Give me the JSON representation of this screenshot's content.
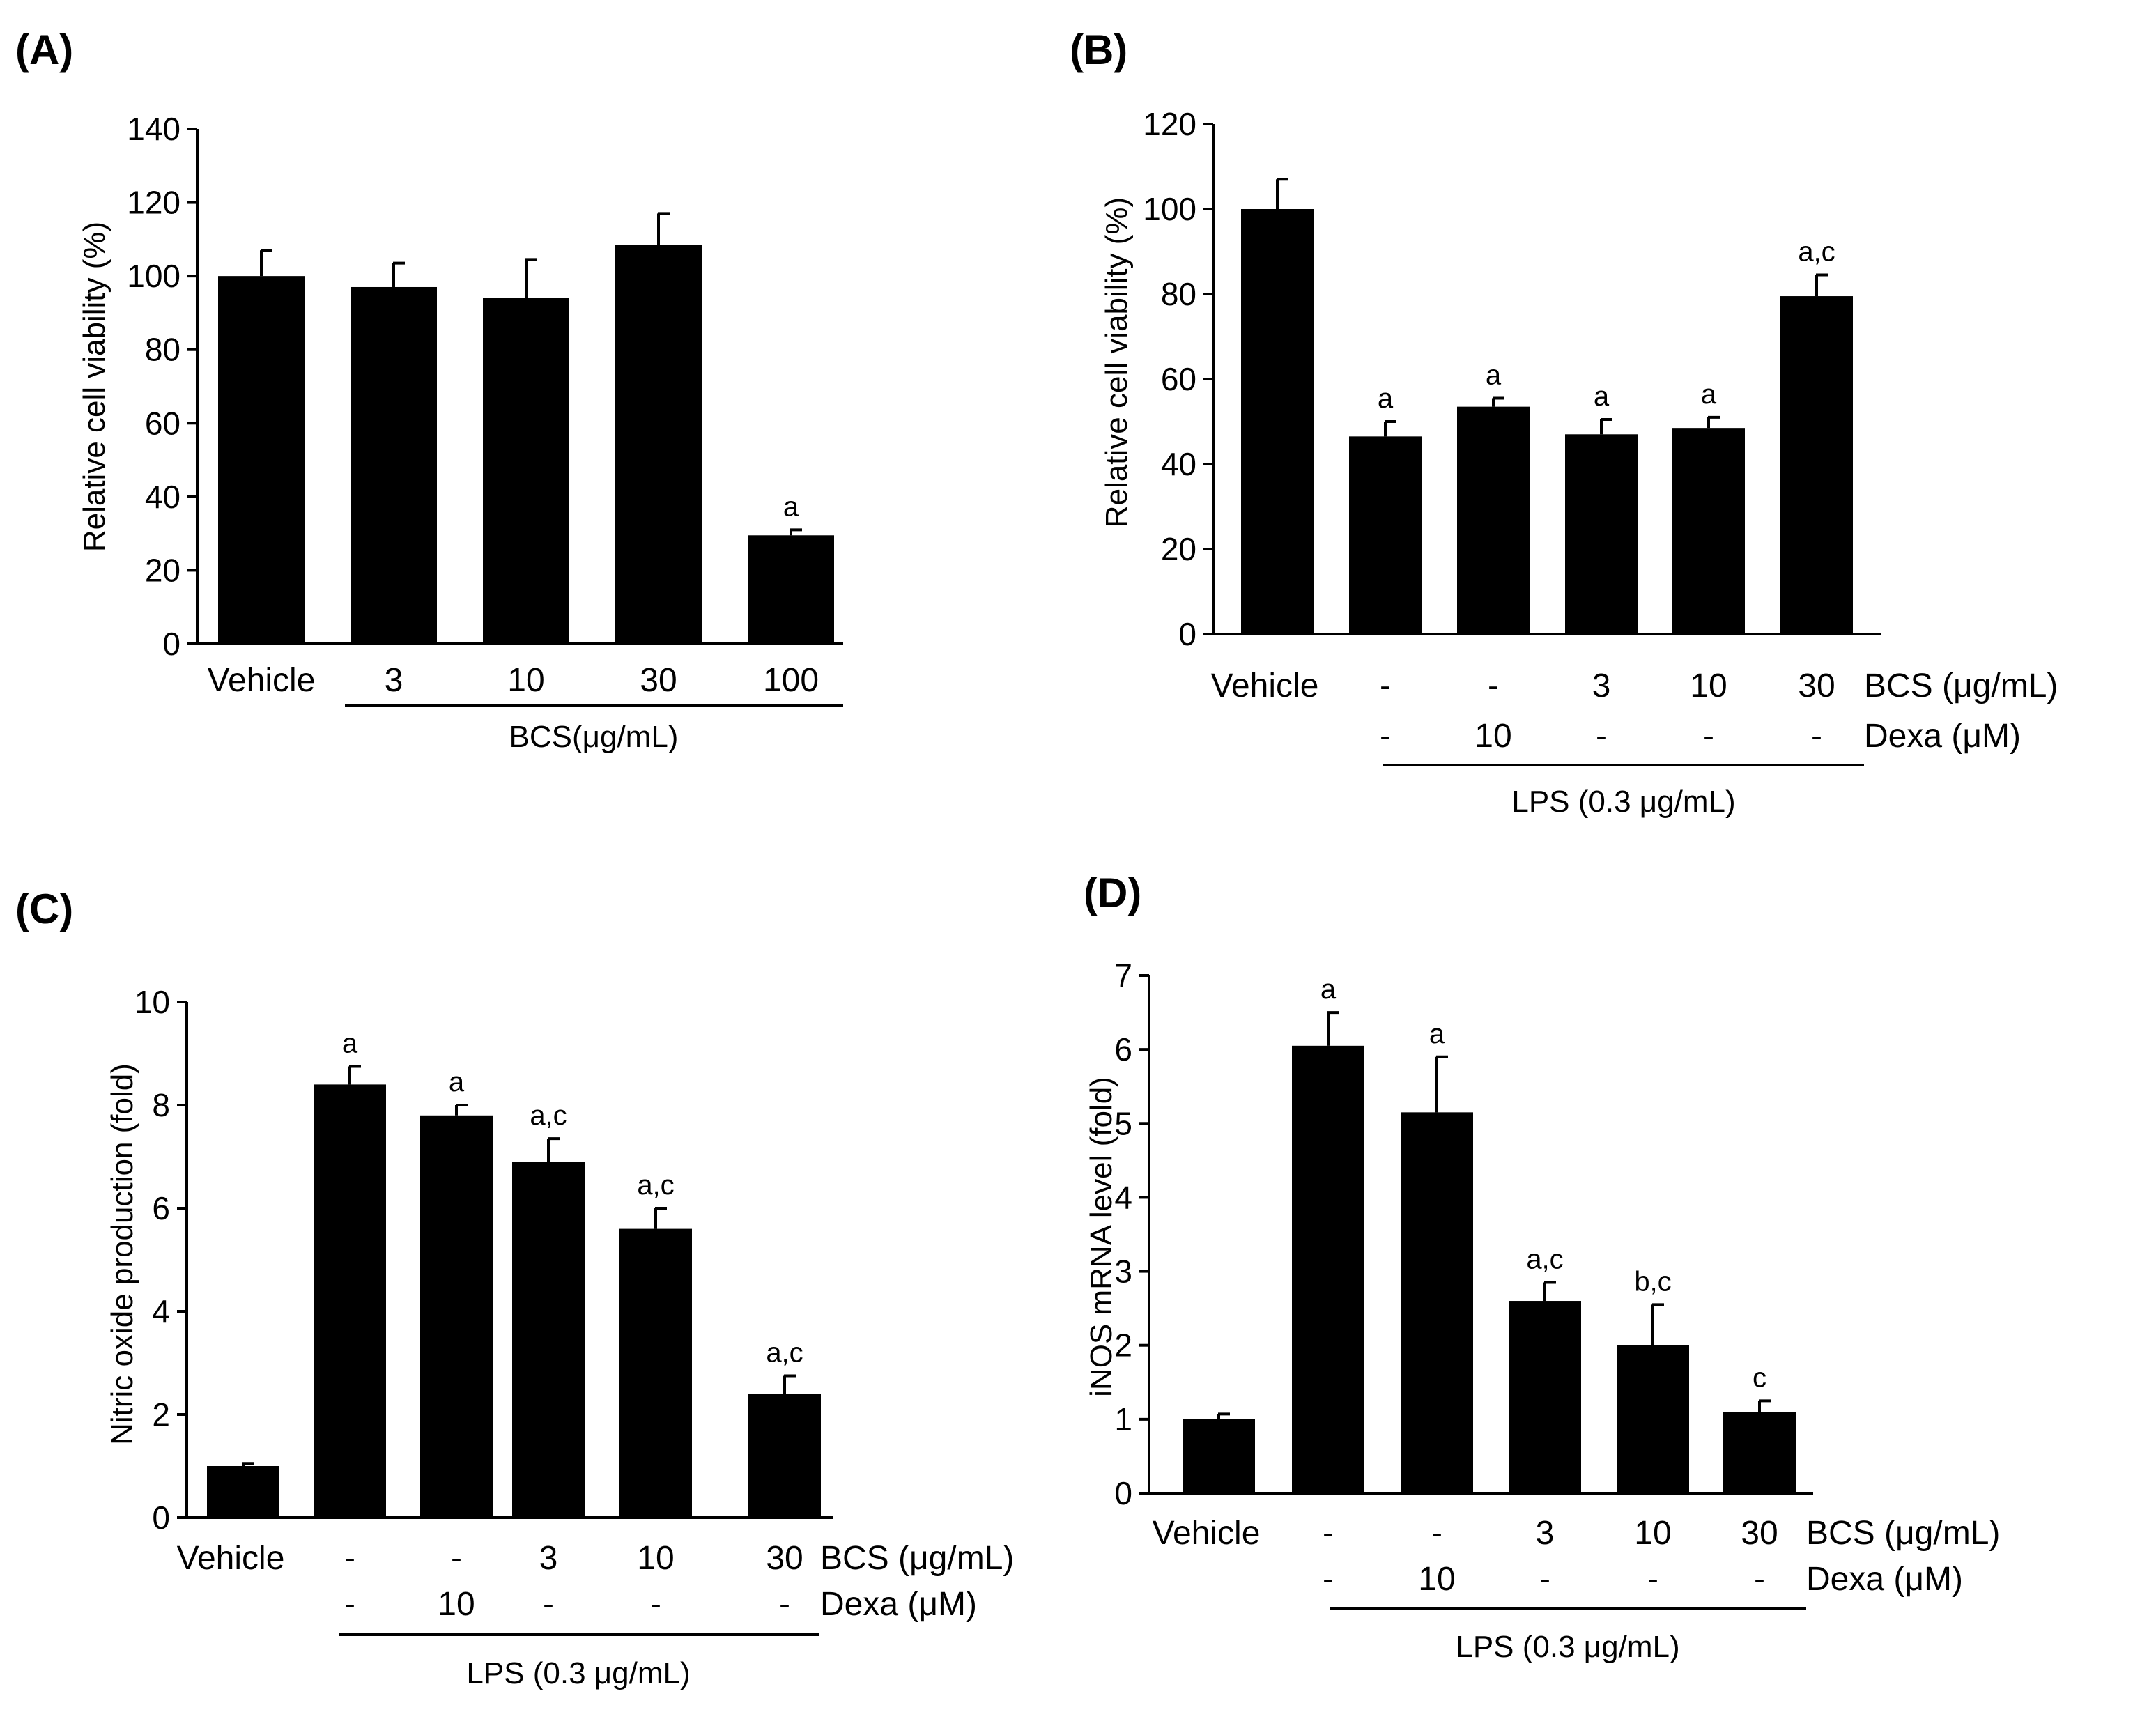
{
  "figure": {
    "colors": {
      "bar": "#000000",
      "axis": "#000000",
      "background": "#ffffff"
    }
  },
  "chart_data": [
    {
      "panel": "(A)",
      "type": "bar",
      "title": "",
      "ylabel": "Relative cell viability (%)",
      "xlabel": "",
      "ylim": [
        0,
        140
      ],
      "yticks": [
        0,
        20,
        40,
        60,
        80,
        100,
        120,
        140
      ],
      "categories": [
        "Vehicle",
        "3",
        "10",
        "30",
        "100"
      ],
      "values": [
        100,
        97,
        94,
        108.5,
        29.5
      ],
      "errors": [
        7,
        6.5,
        10.5,
        8.5,
        1.5
      ],
      "annotations": [
        "",
        "",
        "",
        "",
        "a"
      ],
      "group_label": "BCS(μg/mL)",
      "grid": false
    },
    {
      "panel": "(B)",
      "type": "bar",
      "title": "",
      "ylabel": "Relative cell viability (%)",
      "xlabel": "",
      "ylim": [
        0,
        120
      ],
      "yticks": [
        0,
        20,
        40,
        60,
        80,
        100,
        120
      ],
      "categories": [
        "Vehicle",
        "-",
        "-",
        "3",
        "10",
        "30"
      ],
      "values": [
        100,
        46.5,
        53.5,
        47,
        48.5,
        79.5
      ],
      "errors": [
        7,
        3.5,
        2,
        3.5,
        2.5,
        5
      ],
      "annotations": [
        "",
        "a",
        "a",
        "a",
        "a",
        "a,c"
      ],
      "row_labels": [
        {
          "label": "BCS (μg/mL)",
          "values": [
            "Vehicle",
            "-",
            "-",
            "3",
            "10",
            "30"
          ]
        },
        {
          "label": "Dexa (μM)",
          "values": [
            "",
            "-",
            "10",
            "-",
            "-",
            "-"
          ]
        }
      ],
      "group_label": "LPS (0.3 μg/mL)",
      "grid": false
    },
    {
      "panel": "(C)",
      "type": "bar",
      "title": "",
      "ylabel": "Nitric oxide production (fold)",
      "xlabel": "",
      "ylim": [
        0,
        10
      ],
      "yticks": [
        0,
        2,
        4,
        6,
        8,
        10
      ],
      "categories": [
        "Vehicle",
        "-",
        "-",
        "3",
        "10",
        "30"
      ],
      "values": [
        1,
        8.4,
        7.8,
        6.9,
        5.6,
        2.4
      ],
      "errors": [
        0.05,
        0.35,
        0.2,
        0.45,
        0.4,
        0.35
      ],
      "annotations": [
        "",
        "a",
        "a",
        "a,c",
        "a,c",
        "a,c"
      ],
      "row_labels": [
        {
          "label": "BCS (μg/mL)",
          "values": [
            "Vehicle",
            "-",
            "-",
            "3",
            "10",
            "30"
          ]
        },
        {
          "label": "Dexa (μM)",
          "values": [
            "",
            "-",
            "10",
            "-",
            "-",
            "-"
          ]
        }
      ],
      "group_label": "LPS (0.3 μg/mL)",
      "grid": false
    },
    {
      "panel": "(D)",
      "type": "bar",
      "title": "",
      "ylabel": "iNOS mRNA level (fold)",
      "xlabel": "",
      "ylim": [
        0,
        7
      ],
      "yticks": [
        0,
        1,
        2,
        3,
        4,
        5,
        6,
        7
      ],
      "categories": [
        "Vehicle",
        "-",
        "-",
        "3",
        "10",
        "30"
      ],
      "values": [
        1,
        6.05,
        5.15,
        2.6,
        2.0,
        1.1
      ],
      "errors": [
        0.07,
        0.45,
        0.75,
        0.25,
        0.55,
        0.15
      ],
      "annotations": [
        "",
        "a",
        "a",
        "a,c",
        "b,c",
        "c"
      ],
      "row_labels": [
        {
          "label": "BCS (μg/mL)",
          "values": [
            "Vehicle",
            "-",
            "-",
            "3",
            "10",
            "30"
          ]
        },
        {
          "label": "Dexa (μM)",
          "values": [
            "",
            "-",
            "10",
            "-",
            "-",
            "-"
          ]
        }
      ],
      "group_label": "LPS (0.3 μg/mL)",
      "grid": false
    }
  ]
}
